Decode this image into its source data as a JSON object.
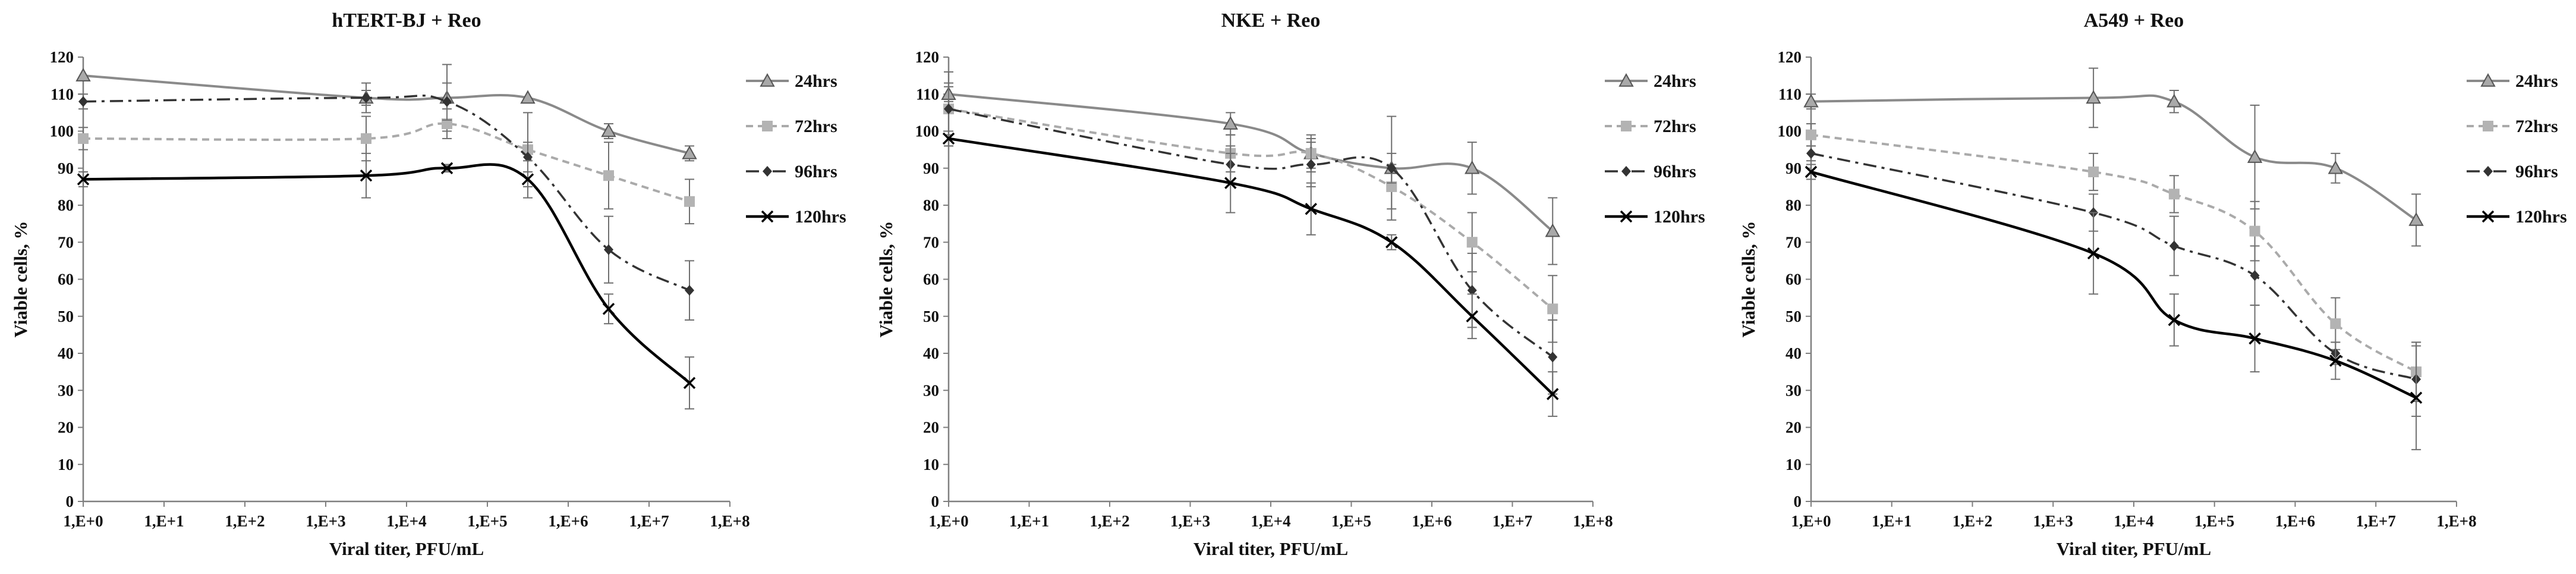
{
  "chart_data": [
    {
      "type": "line",
      "title": "hTERT-BJ + Reo",
      "xlabel": "Viral titer, PFU/mL",
      "ylabel": "Viable cells, %",
      "xscale": "log10",
      "xlim": [
        0,
        8
      ],
      "ylim": [
        0,
        120
      ],
      "xticks": [
        "1,E+0",
        "1,E+1",
        "1,E+2",
        "1,E+3",
        "1,E+4",
        "1,E+5",
        "1,E+6",
        "1,E+7",
        "1,E+8"
      ],
      "yticks": [
        "0",
        "10",
        "20",
        "30",
        "40",
        "50",
        "60",
        "70",
        "80",
        "90",
        "100",
        "110",
        "120"
      ],
      "x": [
        0,
        3.5,
        4.5,
        5.5,
        6.5,
        7.5
      ],
      "legend_position": "right",
      "series": [
        {
          "name": "24hrs",
          "values": [
            115,
            109,
            109,
            109,
            100,
            94
          ],
          "errors": [
            0,
            4,
            9,
            0,
            2,
            2
          ]
        },
        {
          "name": "72hrs",
          "values": [
            98,
            98,
            102,
            95,
            88,
            81
          ],
          "errors": [
            3,
            6,
            4,
            10,
            9,
            6
          ]
        },
        {
          "name": "96hrs",
          "values": [
            108,
            109,
            108,
            93,
            68,
            57
          ],
          "errors": [
            2,
            2,
            5,
            4,
            9,
            8
          ]
        },
        {
          "name": "120hrs",
          "values": [
            87,
            88,
            90,
            87,
            52,
            32
          ],
          "errors": [
            2,
            6,
            1,
            5,
            4,
            7
          ]
        }
      ]
    },
    {
      "type": "line",
      "title": "NKE + Reo",
      "xlabel": "Viral titer, PFU/mL",
      "ylabel": "Viable cells, %",
      "xscale": "log10",
      "xlim": [
        0,
        8
      ],
      "ylim": [
        0,
        120
      ],
      "xticks": [
        "1,E+0",
        "1,E+1",
        "1,E+2",
        "1,E+3",
        "1,E+4",
        "1,E+5",
        "1,E+6",
        "1,E+7",
        "1,E+8"
      ],
      "yticks": [
        "0",
        "10",
        "20",
        "30",
        "40",
        "50",
        "60",
        "70",
        "80",
        "90",
        "100",
        "110",
        "120"
      ],
      "x": [
        0,
        3.5,
        4.5,
        5.5,
        6.5,
        7.5
      ],
      "legend_position": "right",
      "series": [
        {
          "name": "24hrs",
          "values": [
            110,
            102,
            94,
            90,
            90,
            73
          ],
          "errors": [
            2,
            3,
            5,
            14,
            7,
            9
          ]
        },
        {
          "name": "72hrs",
          "values": [
            106,
            94,
            94,
            85,
            70,
            52
          ],
          "errors": [
            7,
            5,
            4,
            6,
            8,
            9
          ]
        },
        {
          "name": "96hrs",
          "values": [
            106,
            91,
            91,
            90,
            57,
            39
          ],
          "errors": [
            10,
            5,
            6,
            4,
            10,
            10
          ]
        },
        {
          "name": "120hrs",
          "values": [
            98,
            86,
            79,
            70,
            50,
            29
          ],
          "errors": [
            2,
            8,
            7,
            2,
            6,
            6
          ]
        }
      ]
    },
    {
      "type": "line",
      "title": "A549 + Reo",
      "xlabel": "Viral titer, PFU/mL",
      "ylabel": "Viable cells, %",
      "xscale": "log10",
      "xlim": [
        0,
        8
      ],
      "ylim": [
        0,
        120
      ],
      "xticks": [
        "1,E+0",
        "1,E+1",
        "1,E+2",
        "1,E+3",
        "1,E+4",
        "1,E+5",
        "1,E+6",
        "1,E+7",
        "1,E+8"
      ],
      "yticks": [
        "0",
        "10",
        "20",
        "30",
        "40",
        "50",
        "60",
        "70",
        "80",
        "90",
        "100",
        "110",
        "120"
      ],
      "x": [
        0,
        3.5,
        4.5,
        5.5,
        6.5,
        7.5
      ],
      "legend_position": "right",
      "series": [
        {
          "name": "24hrs",
          "values": [
            108,
            109,
            108,
            93,
            90,
            76
          ],
          "errors": [
            2,
            8,
            3,
            14,
            4,
            7
          ]
        },
        {
          "name": "72hrs",
          "values": [
            99,
            89,
            83,
            73,
            48,
            35
          ],
          "errors": [
            3,
            5,
            5,
            8,
            7,
            8
          ]
        },
        {
          "name": "96hrs",
          "values": [
            94,
            78,
            69,
            61,
            40,
            33
          ],
          "errors": [
            2,
            5,
            8,
            8,
            3,
            10
          ]
        },
        {
          "name": "120hrs",
          "values": [
            89,
            67,
            49,
            44,
            38,
            28
          ],
          "errors": [
            2,
            11,
            7,
            9,
            5,
            14
          ]
        }
      ]
    }
  ]
}
